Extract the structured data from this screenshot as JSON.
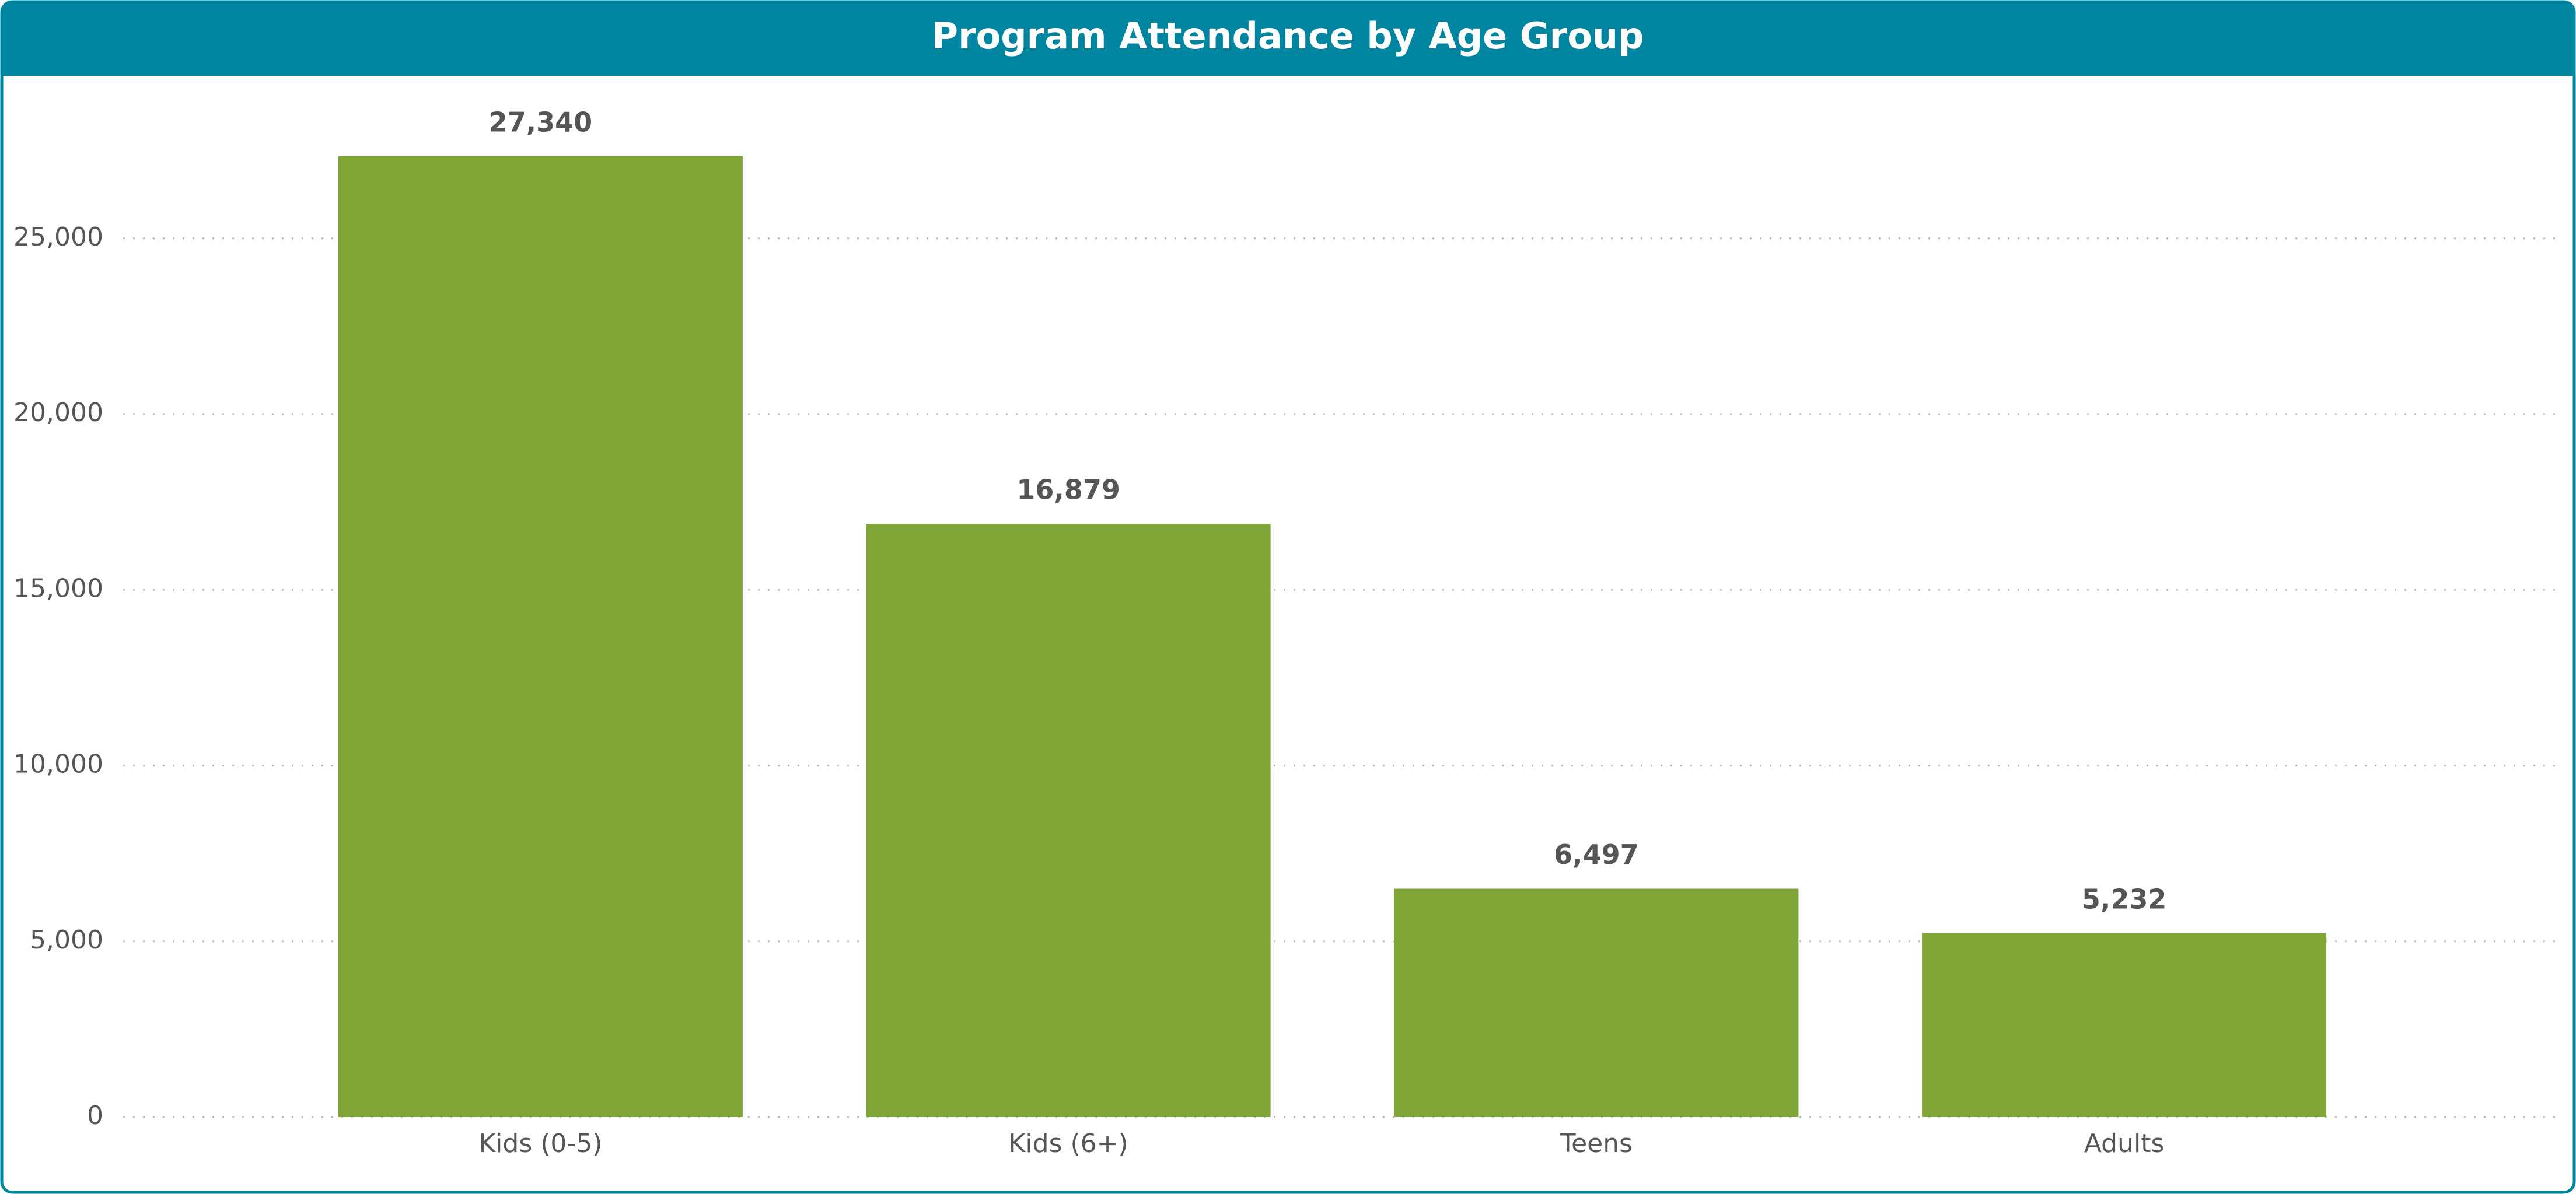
{
  "chart_data": {
    "type": "bar",
    "title": "Program Attendance by Age Group",
    "categories": [
      "Kids (0-5)",
      "Kids (6+)",
      "Teens",
      "Adults"
    ],
    "values": [
      27340,
      16879,
      6497,
      5232
    ],
    "value_labels": [
      "27,340",
      "16,879",
      "6,497",
      "5,232"
    ],
    "color": "#7ea536",
    "ylim": [
      0,
      28000
    ],
    "yticks": [
      0,
      {
        "value": 5000,
        "label": "5,000"
      },
      {
        "value": 10000,
        "label": "10,000"
      },
      {
        "value": 15000,
        "label": "15,000"
      },
      {
        "value": 20000,
        "label": "20,000"
      },
      {
        "value": 25000,
        "label": "25,000"
      }
    ],
    "grid": true
  }
}
